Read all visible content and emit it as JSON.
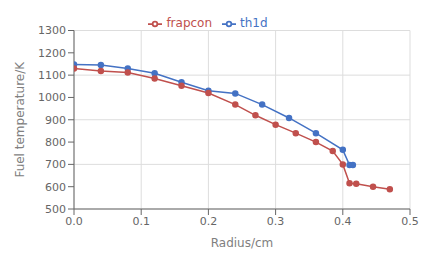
{
  "chart_data": {
    "type": "line",
    "xlabel": "Radius/cm",
    "ylabel": "Fuel temperature/K",
    "series": [
      {
        "name": "th1d",
        "color": "#4472C4",
        "marker": "circle",
        "x": [
          0.0,
          0.04,
          0.08,
          0.12,
          0.16,
          0.2,
          0.24,
          0.28,
          0.32,
          0.36,
          0.4,
          0.41,
          0.415
        ],
        "values": [
          1148,
          1145,
          1130,
          1108,
          1068,
          1030,
          1018,
          968,
          908,
          840,
          765,
          697,
          697
        ]
      },
      {
        "name": "frapcon",
        "color": "#C0504D",
        "marker": "circle",
        "x": [
          0.0,
          0.04,
          0.08,
          0.12,
          0.16,
          0.2,
          0.24,
          0.27,
          0.3,
          0.33,
          0.36,
          0.385,
          0.4,
          0.41,
          0.42,
          0.445,
          0.47
        ],
        "values": [
          1130,
          1118,
          1112,
          1085,
          1052,
          1020,
          968,
          920,
          878,
          840,
          800,
          760,
          700,
          615,
          613,
          600,
          588
        ]
      }
    ],
    "xlim": [
      0,
      0.5
    ],
    "ylim": [
      500,
      1300
    ],
    "xticks": [
      {
        "value": 0,
        "label": "0.0"
      },
      0.1,
      0.2,
      0.3,
      0.4,
      0.5
    ],
    "yticks": [
      500,
      600,
      700,
      800,
      900,
      1000,
      1100,
      1200,
      1300
    ],
    "grid": true,
    "legend": "upper center"
  }
}
